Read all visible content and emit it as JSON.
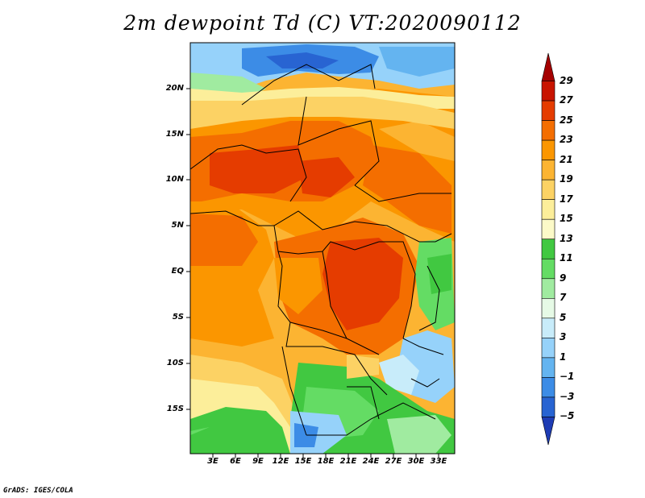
{
  "title": "2m dewpoint Td (C) VT:2020090112",
  "credit": "GrADS: IGES/COLA",
  "map": {
    "lat_labels": [
      "20N",
      "15N",
      "10N",
      "5N",
      "EQ",
      "5S",
      "10S",
      "15S"
    ],
    "lon_labels": [
      "3E",
      "6E",
      "9E",
      "12E",
      "15E",
      "18E",
      "21E",
      "24E",
      "27E",
      "30E",
      "33E"
    ],
    "colorbar": {
      "labels": [
        "29",
        "27",
        "25",
        "23",
        "21",
        "19",
        "17",
        "15",
        "13",
        "11",
        "9",
        "7",
        "5",
        "3",
        "1",
        "−1",
        "−3",
        "−5"
      ],
      "colors": [
        "#a50000",
        "#c81400",
        "#e53c00",
        "#f46e00",
        "#fb9600",
        "#fcb432",
        "#fcd264",
        "#fcee9a",
        "#fcfac8",
        "#41c841",
        "#64dc64",
        "#a0eba0",
        "#e6fae6",
        "#c8ecfa",
        "#96d2fa",
        "#64b4f0",
        "#3c8ce6",
        "#2864d2",
        "#1e3cb4"
      ]
    }
  }
}
